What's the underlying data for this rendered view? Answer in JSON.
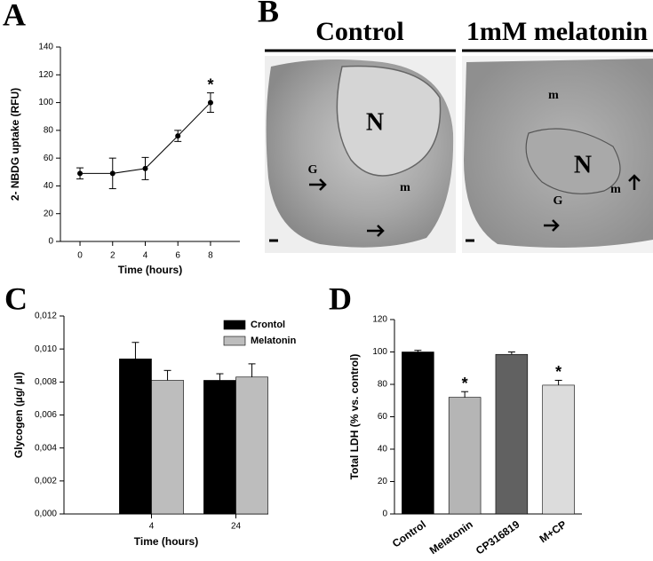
{
  "chart_data": [
    {
      "type": "line",
      "panel_label": "A",
      "y_label": "2- NBDG uptake (RFU)",
      "x_label": "Time (hours)",
      "x": [
        0,
        2,
        4,
        6,
        8
      ],
      "values": [
        49,
        49,
        52.5,
        76,
        100
      ],
      "errors": [
        4,
        11,
        8,
        4,
        7
      ],
      "markers": [
        null,
        null,
        null,
        null,
        "*"
      ],
      "color": "#000000",
      "error_bars": "both",
      "xlim": [
        -1.2,
        9.8
      ],
      "xticks": [
        0,
        2,
        4,
        6,
        8
      ],
      "ylim": [
        0,
        140
      ],
      "yticks": [
        0,
        20,
        40,
        60,
        80,
        100,
        120,
        140
      ]
    },
    {
      "type": "bar",
      "panel_label": "C",
      "y_label": "Glycogen (µg/ µl)",
      "x_label": "Time (hours)",
      "categories": [
        "4",
        "24"
      ],
      "legend": "upper right",
      "error_bars": "up",
      "series": [
        {
          "name": "Crontol",
          "color": "#000000",
          "values": [
            0.0094,
            0.0081
          ],
          "errors": [
            0.001,
            0.0004
          ]
        },
        {
          "name": "Melatonin",
          "color": "#bdbdbd",
          "values": [
            0.0081,
            0.0083
          ],
          "errors": [
            0.0006,
            0.0008
          ]
        }
      ],
      "ylim": [
        0,
        0.012
      ],
      "yticks": [
        {
          "value": 0,
          "label": "0,000"
        },
        {
          "value": 0.002,
          "label": "0,002"
        },
        {
          "value": 0.004,
          "label": "0,004"
        },
        {
          "value": 0.006,
          "label": "0,006"
        },
        {
          "value": 0.008,
          "label": "0,008"
        },
        {
          "value": 0.01,
          "label": "0,010"
        },
        {
          "value": 0.012,
          "label": "0,012"
        }
      ]
    },
    {
      "type": "bar",
      "panel_label": "D",
      "y_label": "Total LDH (% vs. control)",
      "categories": [
        "Control",
        "Melatonin",
        "CP316819",
        "M+CP"
      ],
      "xtick_rotation": 35,
      "error_bars": "up",
      "values": [
        100,
        72,
        98.5,
        79.5
      ],
      "errors": [
        1,
        3.5,
        1.5,
        3
      ],
      "markers": [
        null,
        "*",
        null,
        "*"
      ],
      "colors": [
        "#000000",
        "#b5b5b5",
        "#616161",
        "#dcdcdc"
      ],
      "ylim": [
        0,
        120
      ],
      "yticks": [
        0,
        20,
        40,
        60,
        80,
        100,
        120
      ]
    }
  ],
  "figure_b": {
    "panel_label": "B",
    "images": [
      {
        "title": "Control",
        "labels": [
          "N",
          "G",
          "m"
        ]
      },
      {
        "title": "1mM melatonin",
        "labels": [
          "m",
          "N",
          "m",
          "G"
        ]
      }
    ]
  }
}
